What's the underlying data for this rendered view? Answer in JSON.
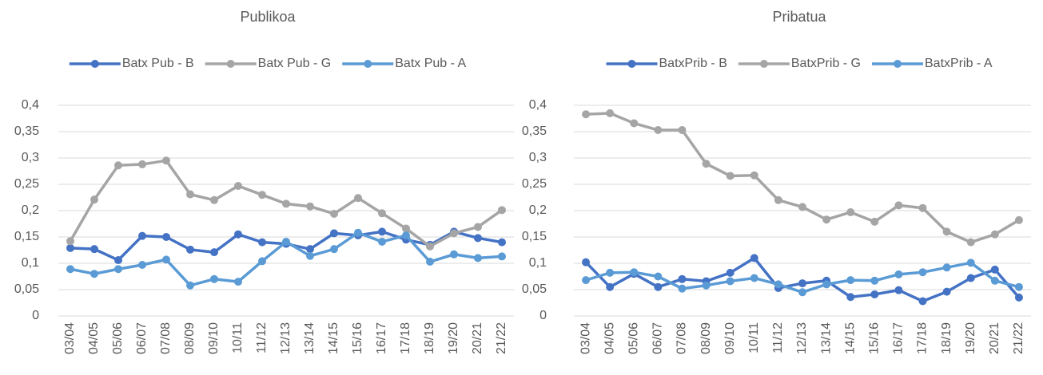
{
  "chart_data": [
    {
      "type": "line",
      "title": "Publikoa",
      "categories": [
        "03/04",
        "04/05",
        "05/06",
        "06/07",
        "07/08",
        "08/09",
        "09/10",
        "10/11",
        "11/12",
        "12/13",
        "13/14",
        "14/15",
        "15/16",
        "16/17",
        "17/18",
        "18/19",
        "19/20",
        "20/21",
        "21/22"
      ],
      "series": [
        {
          "name": "Batx Pub - B",
          "color": "#4472c4",
          "values": [
            0.129,
            0.127,
            0.106,
            0.152,
            0.15,
            0.126,
            0.121,
            0.155,
            0.14,
            0.137,
            0.127,
            0.157,
            0.153,
            0.16,
            0.145,
            0.135,
            0.16,
            0.148,
            0.14
          ]
        },
        {
          "name": "Batx Pub - G",
          "color": "#a5a5a5",
          "values": [
            0.142,
            0.221,
            0.286,
            0.288,
            0.295,
            0.231,
            0.22,
            0.247,
            0.23,
            0.213,
            0.208,
            0.194,
            0.224,
            0.195,
            0.166,
            0.132,
            0.157,
            0.169,
            0.201
          ]
        },
        {
          "name": "Batx Pub - A",
          "color": "#5b9bd5",
          "values": [
            0.089,
            0.08,
            0.089,
            0.097,
            0.107,
            0.058,
            0.07,
            0.065,
            0.104,
            0.141,
            0.114,
            0.127,
            0.158,
            0.141,
            0.153,
            0.103,
            0.117,
            0.11,
            0.113
          ]
        }
      ],
      "ylim": [
        0,
        0.4
      ],
      "yticks": [
        0,
        {
          "value": 0.05,
          "label": "0,05"
        },
        {
          "value": 0.1,
          "label": "0,1"
        },
        {
          "value": 0.15,
          "label": "0,15"
        },
        {
          "value": 0.2,
          "label": "0,2"
        },
        {
          "value": 0.25,
          "label": "0,25"
        },
        {
          "value": 0.3,
          "label": "0,3"
        },
        {
          "value": 0.35,
          "label": "0,35"
        },
        {
          "value": 0.4,
          "label": "0,4"
        }
      ],
      "grid": true,
      "legend": "top"
    },
    {
      "type": "line",
      "title": "Pribatua",
      "categories": [
        "03/04",
        "04/05",
        "05/06",
        "06/07",
        "07/08",
        "08/09",
        "09/10",
        "10/11",
        "11/12",
        "12/13",
        "13/14",
        "14/15",
        "15/16",
        "16/17",
        "17/18",
        "18/19",
        "19/20",
        "20/21",
        "21/22"
      ],
      "series": [
        {
          "name": "BatxPrib - B",
          "color": "#4472c4",
          "values": [
            0.102,
            0.055,
            0.08,
            0.055,
            0.07,
            0.066,
            0.082,
            0.11,
            0.053,
            0.062,
            0.067,
            0.036,
            0.041,
            0.049,
            0.028,
            0.046,
            0.072,
            0.088,
            0.035
          ]
        },
        {
          "name": "BatxPrib - G",
          "color": "#a5a5a5",
          "values": [
            0.383,
            0.385,
            0.366,
            0.353,
            0.353,
            0.289,
            0.266,
            0.267,
            0.22,
            0.207,
            0.183,
            0.197,
            0.179,
            0.21,
            0.205,
            0.16,
            0.14,
            0.155,
            0.182
          ]
        },
        {
          "name": "BatxPrib - A",
          "color": "#5b9bd5",
          "values": [
            0.068,
            0.082,
            0.083,
            0.075,
            0.052,
            0.058,
            0.066,
            0.072,
            0.06,
            0.045,
            0.06,
            0.068,
            0.067,
            0.079,
            0.083,
            0.092,
            0.101,
            0.067,
            0.055
          ]
        }
      ],
      "ylim": [
        0,
        0.4
      ],
      "yticks": [
        0,
        {
          "value": 0.05,
          "label": "0,05"
        },
        {
          "value": 0.1,
          "label": "0,1"
        },
        {
          "value": 0.15,
          "label": "0,15"
        },
        {
          "value": 0.2,
          "label": "0,2"
        },
        {
          "value": 0.25,
          "label": "0,25"
        },
        {
          "value": 0.3,
          "label": "0,3"
        },
        {
          "value": 0.35,
          "label": "0,35"
        },
        {
          "value": 0.4,
          "label": "0,4"
        }
      ],
      "grid": true,
      "legend": "top"
    }
  ]
}
